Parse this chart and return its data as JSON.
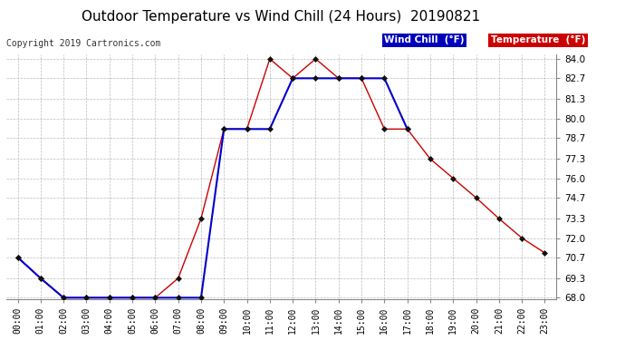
{
  "title": "Outdoor Temperature vs Wind Chill (24 Hours)  20190821",
  "copyright": "Copyright 2019 Cartronics.com",
  "hours": [
    "00:00",
    "01:00",
    "02:00",
    "03:00",
    "04:00",
    "05:00",
    "06:00",
    "07:00",
    "08:00",
    "09:00",
    "10:00",
    "11:00",
    "12:00",
    "13:00",
    "14:00",
    "15:00",
    "16:00",
    "17:00",
    "18:00",
    "19:00",
    "20:00",
    "21:00",
    "22:00",
    "23:00"
  ],
  "temperature": [
    70.7,
    69.3,
    68.0,
    68.0,
    68.0,
    68.0,
    68.0,
    69.3,
    73.3,
    79.3,
    79.3,
    84.0,
    82.7,
    84.0,
    82.7,
    82.7,
    79.3,
    79.3,
    77.3,
    76.0,
    74.7,
    73.3,
    72.0,
    71.0
  ],
  "wind_chill": [
    70.7,
    69.3,
    68.0,
    68.0,
    68.0,
    68.0,
    68.0,
    68.0,
    68.0,
    79.3,
    79.3,
    79.3,
    82.7,
    82.7,
    82.7,
    82.7,
    82.7,
    79.3,
    null,
    null,
    null,
    null,
    null,
    null
  ],
  "temp_color": "#cc0000",
  "wind_color": "#0000cc",
  "ylim_min": 68.0,
  "ylim_max": 84.0,
  "yticks": [
    68.0,
    69.3,
    70.7,
    72.0,
    73.3,
    74.7,
    76.0,
    77.3,
    78.7,
    80.0,
    81.3,
    82.7,
    84.0
  ],
  "bg_color": "#ffffff",
  "grid_color": "#aaaaaa",
  "title_fontsize": 11,
  "marker": "D",
  "marker_size": 3,
  "legend_wind_label": "Wind Chill  (°F)",
  "legend_temp_label": "Temperature  (°F)",
  "legend_wind_bg": "#0000bb",
  "legend_temp_bg": "#cc0000"
}
